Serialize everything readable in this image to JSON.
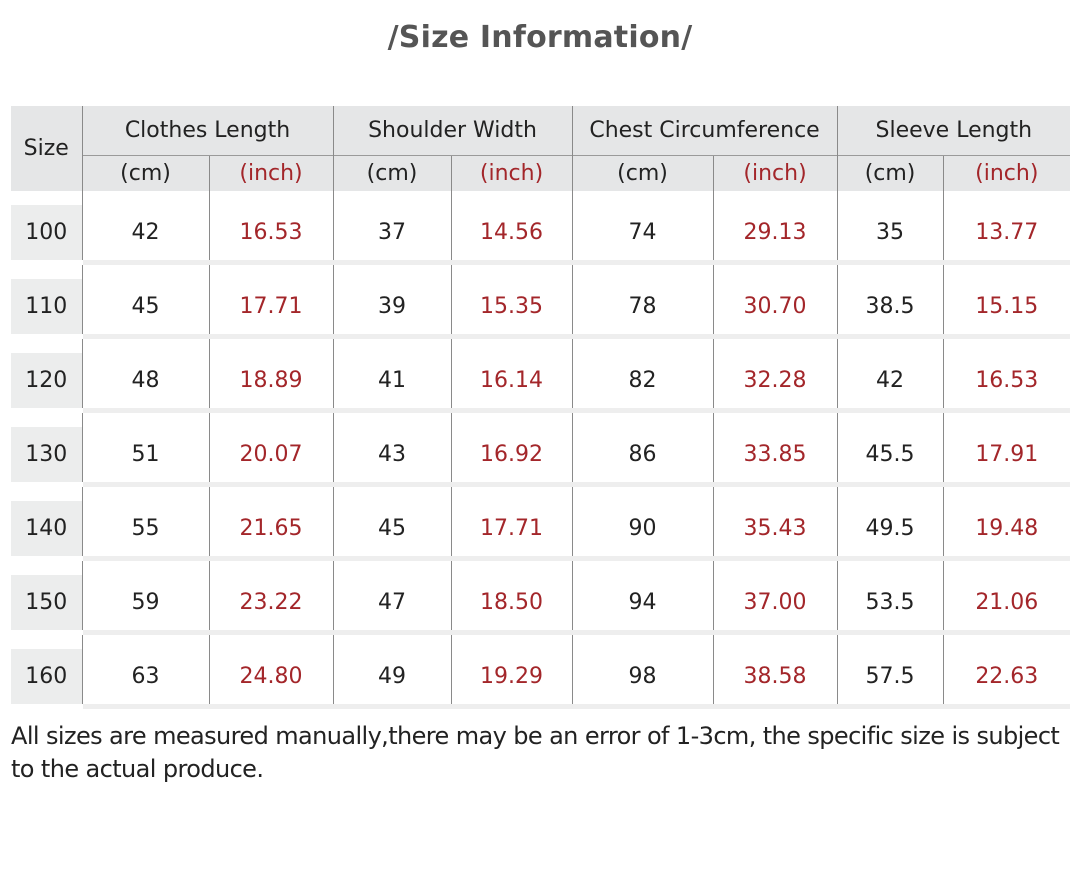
{
  "title_subtitle": "/Size Information/",
  "headers": {
    "size": "Size",
    "groups": [
      "Clothes Length",
      "Shoulder Width",
      "Chest Circumference",
      "Sleeve Length"
    ],
    "unit_cm": "(cm)",
    "unit_inch": "(inch)"
  },
  "rows": [
    {
      "size": "100",
      "cl_cm": "42",
      "cl_in": "16.53",
      "sw_cm": "37",
      "sw_in": "14.56",
      "cc_cm": "74",
      "cc_in": "29.13",
      "sl_cm": "35",
      "sl_in": "13.77"
    },
    {
      "size": "110",
      "cl_cm": "45",
      "cl_in": "17.71",
      "sw_cm": "39",
      "sw_in": "15.35",
      "cc_cm": "78",
      "cc_in": "30.70",
      "sl_cm": "38.5",
      "sl_in": "15.15"
    },
    {
      "size": "120",
      "cl_cm": "48",
      "cl_in": "18.89",
      "sw_cm": "41",
      "sw_in": "16.14",
      "cc_cm": "82",
      "cc_in": "32.28",
      "sl_cm": "42",
      "sl_in": "16.53"
    },
    {
      "size": "130",
      "cl_cm": "51",
      "cl_in": "20.07",
      "sw_cm": "43",
      "sw_in": "16.92",
      "cc_cm": "86",
      "cc_in": "33.85",
      "sl_cm": "45.5",
      "sl_in": "17.91"
    },
    {
      "size": "140",
      "cl_cm": "55",
      "cl_in": "21.65",
      "sw_cm": "45",
      "sw_in": "17.71",
      "cc_cm": "90",
      "cc_in": "35.43",
      "sl_cm": "49.5",
      "sl_in": "19.48"
    },
    {
      "size": "150",
      "cl_cm": "59",
      "cl_in": "23.22",
      "sw_cm": "47",
      "sw_in": "18.50",
      "cc_cm": "94",
      "cc_in": "37.00",
      "sl_cm": "53.5",
      "sl_in": "21.06"
    },
    {
      "size": "160",
      "cl_cm": "63",
      "cl_in": "24.80",
      "sw_cm": "49",
      "sw_in": "19.29",
      "cc_cm": "98",
      "cc_in": "38.58",
      "sl_cm": "57.5",
      "sl_in": "22.63"
    }
  ],
  "note": "All sizes are measured manually,there may be an error of 1-3cm, the specific size is subject to the actual produce.",
  "colors": {
    "inch_red": "#a3262a",
    "header_grey": "#e5e6e7",
    "text_dark": "#222222",
    "subtitle_grey": "#555555"
  }
}
